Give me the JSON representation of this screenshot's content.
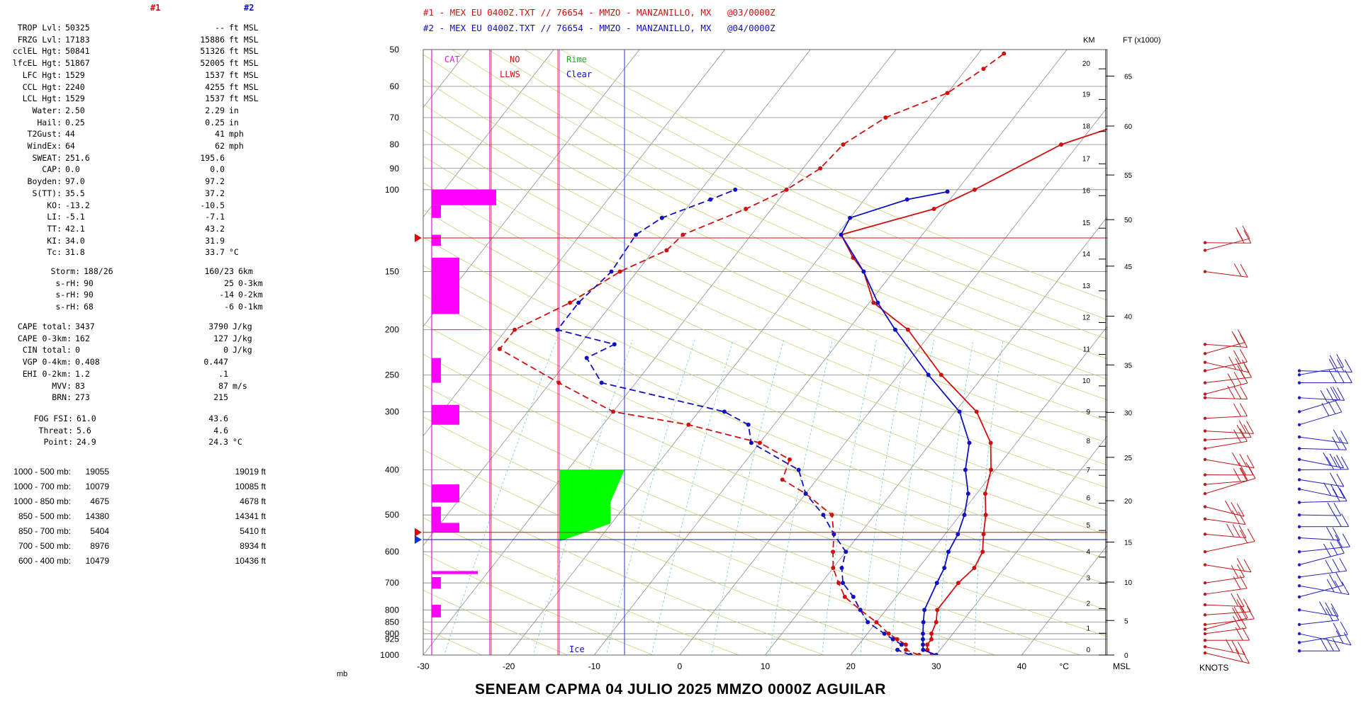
{
  "legend": {
    "line1": "#1 - MEX EU 0400Z.TXT // 76654 - MMZO - MANZANILLO, MX   @03/0000Z",
    "line2": "#2 - MEX EU 0400Z.TXT // 76654 - MMZO - MANZANILLO, MX   @04/0000Z",
    "color1": "#d01010",
    "color2": "#1010c0"
  },
  "panel": {
    "header1": "#1",
    "header2": "#2",
    "indices": [
      {
        "label": "TROP Lvl:",
        "v1": "50325",
        "v2": "--",
        "unit": "ft MSL"
      },
      {
        "label": "FRZG Lvl:",
        "v1": "17183",
        "v2": "15886",
        "unit": "ft MSL"
      },
      {
        "label": "cclEL Hgt:",
        "v1": "50841",
        "v2": "51326",
        "unit": "ft MSL"
      },
      {
        "label": "lfcEL Hgt:",
        "v1": "51867",
        "v2": "52005",
        "unit": "ft MSL"
      },
      {
        "label": "LFC Hgt:",
        "v1": "1529",
        "v2": "1537",
        "unit": "ft MSL"
      },
      {
        "label": "CCL Hgt:",
        "v1": "2240",
        "v2": "4255",
        "unit": "ft MSL"
      },
      {
        "label": "LCL Hgt:",
        "v1": "1529",
        "v2": "1537",
        "unit": "ft MSL"
      },
      {
        "label": "Water:",
        "v1": "2.50",
        "v2": "2.29",
        "unit": "in"
      },
      {
        "label": "Hail:",
        "v1": "0.25",
        "v2": "0.25",
        "unit": "in"
      },
      {
        "label": "T2Gust:",
        "v1": "44",
        "v2": "41",
        "unit": "mph"
      },
      {
        "label": "WindEx:",
        "v1": "64",
        "v2": "62",
        "unit": "mph"
      },
      {
        "label": "SWEAT:",
        "v1": "251.6",
        "v2": "195.6",
        "unit": ""
      },
      {
        "label": "CAP:",
        "v1": "0.0",
        "v2": "0.0",
        "unit": ""
      },
      {
        "label": "Boyden:",
        "v1": "97.0",
        "v2": "97.2",
        "unit": ""
      },
      {
        "label": "S(TT):",
        "v1": "35.5",
        "v2": "37.2",
        "unit": ""
      },
      {
        "label": "KO:",
        "v1": "-13.2",
        "v2": "-10.5",
        "unit": ""
      },
      {
        "label": "LI:",
        "v1": "-5.1",
        "v2": "-7.1",
        "unit": ""
      },
      {
        "label": "TT:",
        "v1": "42.1",
        "v2": "43.2",
        "unit": ""
      },
      {
        "label": "KI:",
        "v1": "34.0",
        "v2": "31.9",
        "unit": ""
      },
      {
        "label": "Tc:",
        "v1": "31.8",
        "v2": "33.7",
        "unit": "°C"
      }
    ],
    "storm": [
      {
        "label": "Storm:",
        "v1": "188/26",
        "v2": "160/23",
        "unit": "6km"
      },
      {
        "label": "s-rH:",
        "v1": "90",
        "v2": "25",
        "unit": "0-3km"
      },
      {
        "label": "s-rH:",
        "v1": "90",
        "v2": "-14",
        "unit": "0-2km"
      },
      {
        "label": "s-rH:",
        "v1": "68",
        "v2": "-6",
        "unit": "0-1km"
      }
    ],
    "cape": [
      {
        "label": "CAPE total:",
        "v1": "3437",
        "v2": "3790",
        "unit": "J/kg"
      },
      {
        "label": "CAPE 0-3km:",
        "v1": "162",
        "v2": "127",
        "unit": "J/kg"
      },
      {
        "label": "CIN total:",
        "v1": "0",
        "v2": "0",
        "unit": "J/kg"
      },
      {
        "label": "VGP 0-4km:",
        "v1": "0.408",
        "v2": "0.447",
        "unit": ""
      },
      {
        "label": "EHI 0-2km:",
        "v1": "1.2",
        "v2": ".1",
        "unit": ""
      },
      {
        "label": "MVV:",
        "v1": "83",
        "v2": "87",
        "unit": "m/s"
      },
      {
        "label": "BRN:",
        "v1": "273",
        "v2": "215",
        "unit": ""
      }
    ],
    "fog": [
      {
        "label": "FOG FSI:",
        "v1": "61.0",
        "v2": "43.6",
        "unit": ""
      },
      {
        "label": "Threat:",
        "v1": "5.6",
        "v2": "4.6",
        "unit": ""
      },
      {
        "label": "Point:",
        "v1": "24.9",
        "v2": "24.3",
        "unit": "°C"
      }
    ],
    "thickness": [
      {
        "label": "1000 - 500 mb:",
        "v1": "19055",
        "v2": "19019 ft"
      },
      {
        "label": "1000 - 700 mb:",
        "v1": "10079",
        "v2": "10085 ft"
      },
      {
        "label": "1000 - 850 mb:",
        "v1": "4675",
        "v2": "4678 ft"
      },
      {
        "label": "850 - 500 mb:",
        "v1": "14380",
        "v2": "14341 ft"
      },
      {
        "label": "850 - 700 mb:",
        "v1": "5404",
        "v2": "5410 ft"
      },
      {
        "label": "700 - 500 mb:",
        "v1": "8976",
        "v2": "8934 ft"
      },
      {
        "label": "600 - 400 mb:",
        "v1": "10479",
        "v2": "10436 ft"
      }
    ]
  },
  "chart_data": {
    "type": "line",
    "subtype": "skew-T log-P sounding",
    "y_unit_label": "mb",
    "x_unit_label": "°C",
    "xlim": [
      -30,
      50
    ],
    "ylim": [
      1000,
      50
    ],
    "x_ticks": [
      "-30",
      "-20",
      "-10",
      "0",
      "10",
      "20",
      "30",
      "40"
    ],
    "pressure_ticks": [
      {
        "p": 50,
        "label": "50"
      },
      {
        "p": 60,
        "label": "60"
      },
      {
        "p": 70,
        "label": "70"
      },
      {
        "p": 80,
        "label": "80"
      },
      {
        "p": 90,
        "label": "90"
      },
      {
        "p": 100,
        "label": "100"
      },
      {
        "p": 150,
        "label": "150"
      },
      {
        "p": 200,
        "label": "200"
      },
      {
        "p": 250,
        "label": "250"
      },
      {
        "p": 300,
        "label": "300"
      },
      {
        "p": 400,
        "label": "400"
      },
      {
        "p": 500,
        "label": "500"
      },
      {
        "p": 600,
        "label": "600"
      },
      {
        "p": 700,
        "label": "700"
      },
      {
        "p": 800,
        "label": "800"
      },
      {
        "p": 850,
        "label": "850"
      },
      {
        "p": 900,
        "label": "900"
      },
      {
        "p": 925,
        "label": "925"
      },
      {
        "p": 1000,
        "label": "1000"
      }
    ],
    "km_axis_label": "KM",
    "km_ticks": [
      {
        "p": 1000,
        "label": "0"
      },
      {
        "p": 898,
        "label": "1"
      },
      {
        "p": 795,
        "label": "2"
      },
      {
        "p": 701,
        "label": "3"
      },
      {
        "p": 616,
        "label": "4"
      },
      {
        "p": 540,
        "label": "5"
      },
      {
        "p": 472,
        "label": "6"
      },
      {
        "p": 411,
        "label": "7"
      },
      {
        "p": 356,
        "label": "8"
      },
      {
        "p": 308,
        "label": "9"
      },
      {
        "p": 264,
        "label": "10"
      },
      {
        "p": 226,
        "label": "11"
      },
      {
        "p": 193,
        "label": "12"
      },
      {
        "p": 165,
        "label": "13"
      },
      {
        "p": 141,
        "label": "14"
      },
      {
        "p": 121,
        "label": "15"
      },
      {
        "p": 103,
        "label": "16"
      },
      {
        "p": 88,
        "label": "17"
      },
      {
        "p": 75,
        "label": "18"
      },
      {
        "p": 64,
        "label": "19"
      },
      {
        "p": 55,
        "label": "20"
      }
    ],
    "ft_axis_label": "FT (x1000)",
    "ft_ticks": [
      {
        "p": 1000,
        "label": "0"
      },
      {
        "p": 843,
        "label": "5"
      },
      {
        "p": 697,
        "label": "10"
      },
      {
        "p": 572,
        "label": "15"
      },
      {
        "p": 466,
        "label": "20"
      },
      {
        "p": 376,
        "label": "25"
      },
      {
        "p": 301,
        "label": "30"
      },
      {
        "p": 238,
        "label": "35"
      },
      {
        "p": 187,
        "label": "40"
      },
      {
        "p": 146,
        "label": "45"
      },
      {
        "p": 116,
        "label": "50"
      },
      {
        "p": 93,
        "label": "55"
      },
      {
        "p": 73,
        "label": "60"
      },
      {
        "p": 57,
        "label": "65"
      }
    ],
    "msl_label": "MSL",
    "knots_label": "KNOTS",
    "icing_labels": {
      "cat": "CAT",
      "no": "NO",
      "llws": "LLWS",
      "rime": "Rime",
      "clear": "Clear",
      "ice": "Ice"
    },
    "series": [
      {
        "name": "#1",
        "color": "#d01010",
        "temperature": [
          [
            1000,
            29.5
          ],
          [
            975,
            28.5
          ],
          [
            950,
            28.0
          ],
          [
            925,
            28.0
          ],
          [
            900,
            27.5
          ],
          [
            850,
            27.0
          ],
          [
            800,
            26.0
          ],
          [
            700,
            26.0
          ],
          [
            650,
            26.5
          ],
          [
            600,
            26.0
          ],
          [
            550,
            24.5
          ],
          [
            500,
            23.0
          ],
          [
            450,
            21.0
          ],
          [
            400,
            19.5
          ],
          [
            350,
            17.0
          ],
          [
            300,
            12.5
          ],
          [
            250,
            5.0
          ],
          [
            200,
            -3.0
          ],
          [
            175,
            -9.5
          ],
          [
            150,
            -13.5
          ],
          [
            140,
            -16.0
          ],
          [
            125,
            -19.5
          ],
          [
            110,
            -11.0
          ],
          [
            100,
            -8.0
          ],
          [
            80,
            -2.0
          ],
          [
            70,
            5.0
          ],
          [
            62,
            14.0
          ],
          [
            54,
            25.0
          ]
        ],
        "dewpoint": [
          [
            1000,
            28.0
          ],
          [
            975,
            26.0
          ],
          [
            950,
            25.5
          ],
          [
            925,
            24.0
          ],
          [
            900,
            22.5
          ],
          [
            850,
            20.0
          ],
          [
            800,
            17.0
          ],
          [
            750,
            14.0
          ],
          [
            700,
            12.0
          ],
          [
            650,
            10.0
          ],
          [
            600,
            8.5
          ],
          [
            550,
            7.0
          ],
          [
            500,
            5.0
          ],
          [
            450,
            0.0
          ],
          [
            420,
            -4.0
          ],
          [
            380,
            -5.0
          ],
          [
            350,
            -10.0
          ],
          [
            320,
            -20.0
          ],
          [
            300,
            -30.0
          ],
          [
            260,
            -39.0
          ],
          [
            220,
            -49.0
          ],
          [
            200,
            -49.0
          ],
          [
            175,
            -45.0
          ],
          [
            150,
            -42.0
          ],
          [
            135,
            -38.5
          ],
          [
            125,
            -38.0
          ],
          [
            110,
            -33.0
          ],
          [
            100,
            -30.0
          ],
          [
            90,
            -28.0
          ],
          [
            80,
            -27.5
          ],
          [
            70,
            -25.0
          ],
          [
            62,
            -20.0
          ],
          [
            55,
            -18.0
          ],
          [
            51,
            -17.0
          ]
        ]
      },
      {
        "name": "#2",
        "color": "#1010c0",
        "temperature": [
          [
            1000,
            30.0
          ],
          [
            975,
            28.0
          ],
          [
            950,
            27.5
          ],
          [
            925,
            27.0
          ],
          [
            900,
            26.5
          ],
          [
            850,
            25.5
          ],
          [
            800,
            24.5
          ],
          [
            700,
            23.5
          ],
          [
            650,
            23.0
          ],
          [
            600,
            22.0
          ],
          [
            550,
            21.5
          ],
          [
            500,
            20.5
          ],
          [
            450,
            19.0
          ],
          [
            400,
            16.5
          ],
          [
            350,
            14.5
          ],
          [
            300,
            10.5
          ],
          [
            250,
            3.5
          ],
          [
            200,
            -4.5
          ],
          [
            175,
            -9.0
          ],
          [
            150,
            -13.5
          ],
          [
            125,
            -19.5
          ],
          [
            115,
            -20.0
          ],
          [
            105,
            -15.0
          ],
          [
            101,
            -11.0
          ]
        ],
        "dewpoint": [
          [
            1000,
            27.0
          ],
          [
            975,
            25.0
          ],
          [
            950,
            25.0
          ],
          [
            925,
            23.5
          ],
          [
            900,
            22.0
          ],
          [
            850,
            19.0
          ],
          [
            800,
            17.0
          ],
          [
            750,
            15.0
          ],
          [
            700,
            12.5
          ],
          [
            650,
            11.0
          ],
          [
            600,
            10.0
          ],
          [
            550,
            7.0
          ],
          [
            500,
            4.0
          ],
          [
            450,
            0.0
          ],
          [
            400,
            -3.0
          ],
          [
            350,
            -11.0
          ],
          [
            320,
            -13.0
          ],
          [
            300,
            -17.0
          ],
          [
            260,
            -34.0
          ],
          [
            230,
            -38.0
          ],
          [
            215,
            -36.0
          ],
          [
            200,
            -44.0
          ],
          [
            175,
            -44.0
          ],
          [
            150,
            -43.0
          ],
          [
            125,
            -43.5
          ],
          [
            115,
            -42.0
          ],
          [
            105,
            -38.0
          ],
          [
            100,
            -36.0
          ]
        ]
      }
    ],
    "markers": {
      "tropopause_p_1": 127,
      "freezing_p_1": 545,
      "freezing_p_2": 565
    },
    "icing_bars": [
      {
        "p_top": 100,
        "p_bot": 108,
        "width": 7
      },
      {
        "p_top": 108,
        "p_bot": 115,
        "width": 1
      },
      {
        "p_top": 125,
        "p_bot": 132,
        "width": 1
      },
      {
        "p_top": 140,
        "p_bot": 185,
        "width": 3
      },
      {
        "p_top": 230,
        "p_bot": 260,
        "width": 1
      },
      {
        "p_top": 290,
        "p_bot": 320,
        "width": 3
      },
      {
        "p_top": 430,
        "p_bot": 470,
        "width": 3
      },
      {
        "p_top": 480,
        "p_bot": 540,
        "width": 1
      },
      {
        "p_top": 520,
        "p_bot": 545,
        "width": 3
      },
      {
        "p_top": 660,
        "p_bot": 670,
        "width": 5
      },
      {
        "p_top": 680,
        "p_bot": 720,
        "width": 1
      },
      {
        "p_top": 780,
        "p_bot": 830,
        "width": 1
      }
    ],
    "icing_region": {
      "p_top": 400,
      "p_mid": 470,
      "p_bottom": 570,
      "t_left": -13.5,
      "t_right": -6
    }
  },
  "title": "SENEAM  CAPMA  04 JULIO 2025  MMZO  0000Z  AGUILAR"
}
